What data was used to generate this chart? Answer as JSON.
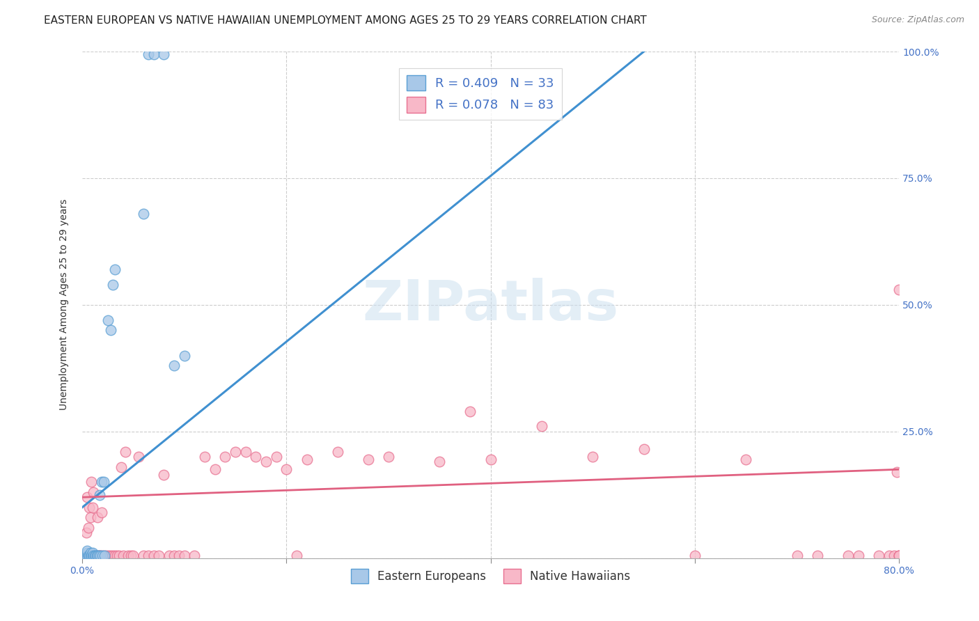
{
  "title": "EASTERN EUROPEAN VS NATIVE HAWAIIAN UNEMPLOYMENT AMONG AGES 25 TO 29 YEARS CORRELATION CHART",
  "source": "Source: ZipAtlas.com",
  "ylabel": "Unemployment Among Ages 25 to 29 years",
  "xlim": [
    0.0,
    0.8
  ],
  "ylim": [
    0.0,
    1.0
  ],
  "title_fontsize": 11,
  "axis_label_fontsize": 10,
  "tick_fontsize": 10,
  "blue_color": "#a8c8e8",
  "blue_edge_color": "#5a9fd4",
  "pink_color": "#f8b8c8",
  "pink_edge_color": "#e87090",
  "watermark_text": "ZIPatlas",
  "R_blue": 0.409,
  "N_blue": 33,
  "R_pink": 0.078,
  "N_pink": 83,
  "legend_label_blue": "Eastern Europeans",
  "legend_label_pink": "Native Hawaiians",
  "blue_line_color": "#4090d0",
  "pink_line_color": "#e06080",
  "ee_x": [
    0.003,
    0.005,
    0.005,
    0.005,
    0.006,
    0.007,
    0.008,
    0.008,
    0.009,
    0.01,
    0.01,
    0.011,
    0.012,
    0.013,
    0.014,
    0.015,
    0.016,
    0.017,
    0.018,
    0.019,
    0.02,
    0.021,
    0.022,
    0.025,
    0.028,
    0.03,
    0.032,
    0.06,
    0.065,
    0.07,
    0.08,
    0.09,
    0.1
  ],
  "ee_y": [
    0.005,
    0.005,
    0.01,
    0.015,
    0.005,
    0.005,
    0.005,
    0.01,
    0.005,
    0.005,
    0.01,
    0.005,
    0.005,
    0.005,
    0.005,
    0.005,
    0.005,
    0.125,
    0.005,
    0.15,
    0.005,
    0.15,
    0.005,
    0.47,
    0.45,
    0.54,
    0.57,
    0.68,
    0.995,
    0.995,
    0.995,
    0.38,
    0.4
  ],
  "nh_x": [
    0.003,
    0.004,
    0.005,
    0.005,
    0.006,
    0.007,
    0.007,
    0.008,
    0.008,
    0.009,
    0.009,
    0.01,
    0.01,
    0.011,
    0.011,
    0.012,
    0.013,
    0.014,
    0.015,
    0.016,
    0.017,
    0.018,
    0.019,
    0.02,
    0.022,
    0.024,
    0.026,
    0.028,
    0.03,
    0.032,
    0.034,
    0.036,
    0.038,
    0.04,
    0.042,
    0.045,
    0.048,
    0.05,
    0.055,
    0.06,
    0.065,
    0.07,
    0.075,
    0.08,
    0.085,
    0.09,
    0.095,
    0.1,
    0.11,
    0.12,
    0.13,
    0.14,
    0.15,
    0.16,
    0.17,
    0.18,
    0.19,
    0.2,
    0.21,
    0.22,
    0.25,
    0.28,
    0.3,
    0.35,
    0.38,
    0.4,
    0.45,
    0.5,
    0.55,
    0.6,
    0.65,
    0.7,
    0.72,
    0.75,
    0.76,
    0.78,
    0.79,
    0.795,
    0.798,
    0.8,
    0.8,
    0.8,
    0.8
  ],
  "nh_y": [
    0.005,
    0.05,
    0.005,
    0.12,
    0.06,
    0.005,
    0.1,
    0.005,
    0.08,
    0.005,
    0.15,
    0.005,
    0.1,
    0.005,
    0.13,
    0.005,
    0.005,
    0.005,
    0.08,
    0.005,
    0.005,
    0.005,
    0.09,
    0.005,
    0.005,
    0.005,
    0.005,
    0.005,
    0.005,
    0.005,
    0.005,
    0.005,
    0.18,
    0.005,
    0.21,
    0.005,
    0.005,
    0.005,
    0.2,
    0.005,
    0.005,
    0.005,
    0.005,
    0.165,
    0.005,
    0.005,
    0.005,
    0.005,
    0.005,
    0.2,
    0.175,
    0.2,
    0.21,
    0.21,
    0.2,
    0.19,
    0.2,
    0.175,
    0.005,
    0.195,
    0.21,
    0.195,
    0.2,
    0.19,
    0.29,
    0.195,
    0.26,
    0.2,
    0.215,
    0.005,
    0.195,
    0.005,
    0.005,
    0.005,
    0.005,
    0.005,
    0.005,
    0.005,
    0.17,
    0.005,
    0.005,
    0.005,
    0.53
  ]
}
